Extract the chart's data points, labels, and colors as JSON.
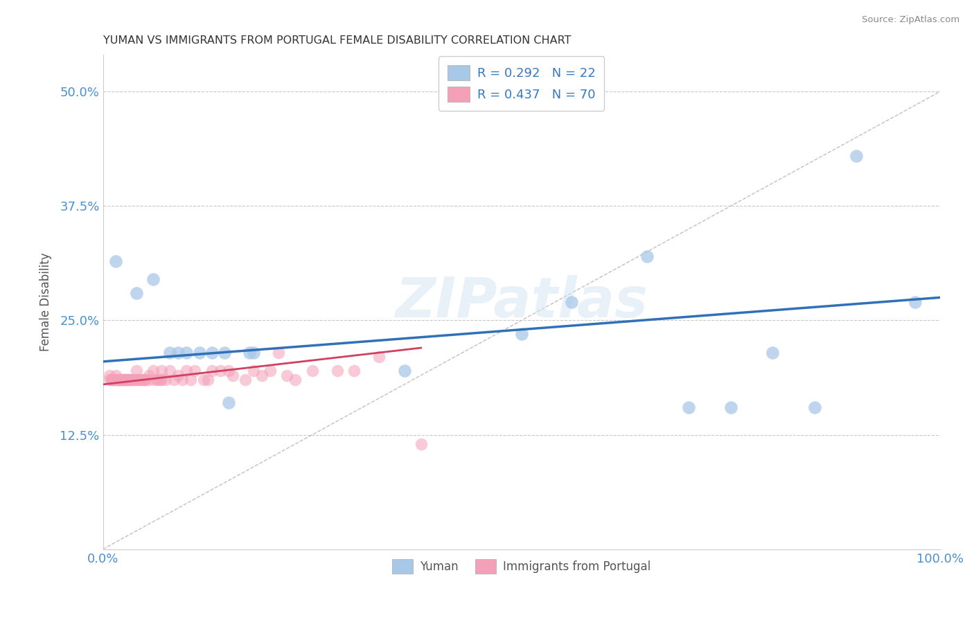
{
  "title": "YUMAN VS IMMIGRANTS FROM PORTUGAL FEMALE DISABILITY CORRELATION CHART",
  "source": "Source: ZipAtlas.com",
  "ylabel": "Female Disability",
  "xmin": 0.0,
  "xmax": 1.0,
  "ymin": 0.0,
  "ymax": 0.54,
  "yticks": [
    0.125,
    0.25,
    0.375,
    0.5
  ],
  "ytick_labels": [
    "12.5%",
    "25.0%",
    "37.5%",
    "50.0%"
  ],
  "xticks": [
    0.0,
    0.25,
    0.5,
    0.75,
    1.0
  ],
  "xtick_labels": [
    "0.0%",
    "",
    "",
    "",
    "100.0%"
  ],
  "legend_labels": [
    "Yuman",
    "Immigrants from Portugal"
  ],
  "legend_r": [
    "R = 0.292",
    "R = 0.437"
  ],
  "legend_n": [
    "N = 22",
    "N = 70"
  ],
  "blue_color": "#a8c8e8",
  "pink_color": "#f4a0b8",
  "blue_line_color": "#3070b8",
  "pink_line_color": "#d04060",
  "ref_line_color": "#c8c8c8",
  "watermark": "ZIPatlas",
  "blue_scatter_x": [
    0.015,
    0.04,
    0.06,
    0.08,
    0.09,
    0.1,
    0.115,
    0.13,
    0.145,
    0.15,
    0.175,
    0.18,
    0.36,
    0.5,
    0.56,
    0.65,
    0.7,
    0.75,
    0.8,
    0.85,
    0.9,
    0.97
  ],
  "blue_scatter_y": [
    0.315,
    0.28,
    0.295,
    0.215,
    0.215,
    0.215,
    0.215,
    0.215,
    0.215,
    0.16,
    0.215,
    0.215,
    0.195,
    0.235,
    0.27,
    0.32,
    0.155,
    0.155,
    0.215,
    0.155,
    0.43,
    0.27
  ],
  "pink_scatter_x": [
    0.008,
    0.008,
    0.01,
    0.01,
    0.012,
    0.012,
    0.015,
    0.015,
    0.015,
    0.018,
    0.018,
    0.02,
    0.02,
    0.02,
    0.022,
    0.022,
    0.025,
    0.025,
    0.025,
    0.028,
    0.028,
    0.03,
    0.03,
    0.03,
    0.032,
    0.035,
    0.035,
    0.038,
    0.04,
    0.04,
    0.042,
    0.045,
    0.045,
    0.048,
    0.05,
    0.05,
    0.055,
    0.055,
    0.06,
    0.062,
    0.065,
    0.068,
    0.07,
    0.07,
    0.075,
    0.08,
    0.085,
    0.09,
    0.095,
    0.1,
    0.105,
    0.11,
    0.12,
    0.125,
    0.13,
    0.14,
    0.15,
    0.155,
    0.17,
    0.18,
    0.19,
    0.2,
    0.21,
    0.22,
    0.23,
    0.25,
    0.28,
    0.3,
    0.33,
    0.38
  ],
  "pink_scatter_y": [
    0.185,
    0.19,
    0.185,
    0.185,
    0.185,
    0.185,
    0.185,
    0.185,
    0.19,
    0.185,
    0.185,
    0.185,
    0.185,
    0.185,
    0.185,
    0.185,
    0.185,
    0.185,
    0.185,
    0.185,
    0.185,
    0.185,
    0.185,
    0.185,
    0.185,
    0.185,
    0.185,
    0.185,
    0.195,
    0.185,
    0.185,
    0.185,
    0.185,
    0.185,
    0.185,
    0.185,
    0.19,
    0.185,
    0.195,
    0.185,
    0.185,
    0.185,
    0.195,
    0.185,
    0.185,
    0.195,
    0.185,
    0.19,
    0.185,
    0.195,
    0.185,
    0.195,
    0.185,
    0.185,
    0.195,
    0.195,
    0.195,
    0.19,
    0.185,
    0.195,
    0.19,
    0.195,
    0.215,
    0.19,
    0.185,
    0.195,
    0.195,
    0.195,
    0.21,
    0.115
  ],
  "blue_trend_x": [
    0.0,
    1.0
  ],
  "blue_trend_y": [
    0.205,
    0.275
  ],
  "pink_trend_x": [
    0.0,
    0.38
  ],
  "pink_trend_y": [
    0.18,
    0.22
  ]
}
